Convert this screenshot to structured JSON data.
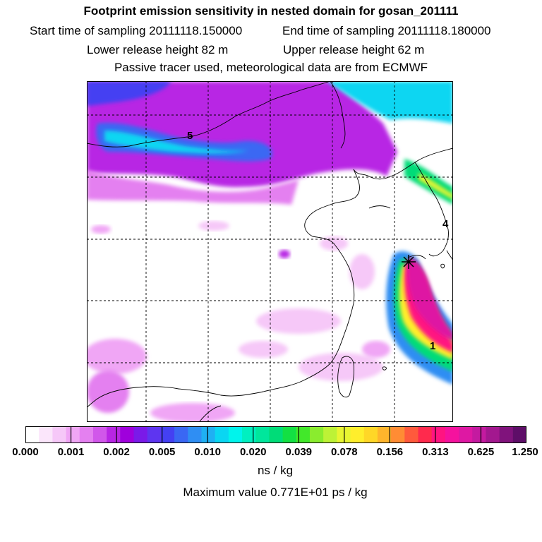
{
  "header": {
    "title": "Footprint emission sensitivity in nested domain for gosan_201111",
    "start_label": "Start time of sampling 20111118.150000",
    "end_label": "End time of sampling 20111118.180000",
    "lower_label": "Lower release height   82 m",
    "upper_label": "Upper release height   62 m",
    "note": "Passive tracer used, meteorological data are from ECMWF"
  },
  "map": {
    "labels": [
      "5",
      "4",
      "1"
    ]
  },
  "colorbar": {
    "colors": [
      "#ffffff",
      "#fbe6fb",
      "#f6c8f8",
      "#f0a6f5",
      "#e480f0",
      "#d157ea",
      "#b826e4",
      "#9f00dc",
      "#7a1ae8",
      "#5e35f0",
      "#4440f2",
      "#3a67f3",
      "#2f8ef3",
      "#1fb0f3",
      "#0ad6f2",
      "#00f4ec",
      "#00f0c0",
      "#00e69c",
      "#00dc78",
      "#13e043",
      "#42e82a",
      "#8aec2e",
      "#bdf236",
      "#e8f532",
      "#ffee2c",
      "#ffd727",
      "#ffb52c",
      "#ff8c34",
      "#ff5a3c",
      "#ff2a4d",
      "#ff1481",
      "#f5129e",
      "#de18a3",
      "#c41aa0",
      "#a3188f",
      "#80137c",
      "#5e0e68"
    ],
    "tick_labels": [
      "0.000",
      "0.001",
      "0.002",
      "0.005",
      "0.010",
      "0.020",
      "0.039",
      "0.078",
      "0.156",
      "0.313",
      "0.625",
      "1.250"
    ]
  },
  "footer": {
    "units": "ns / kg",
    "max_value": "Maximum value  0.771E+01 ps / kg"
  }
}
